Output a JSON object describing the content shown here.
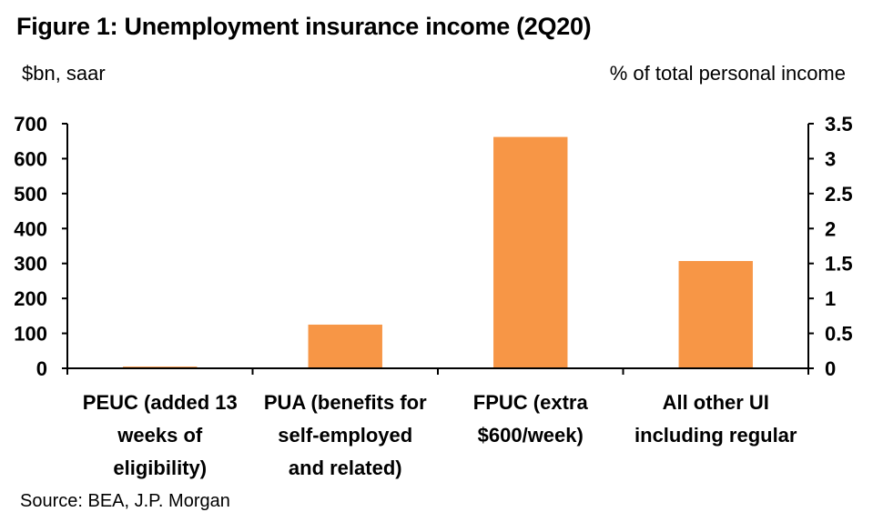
{
  "chart_data": {
    "type": "bar",
    "title": "Figure 1: Unemployment insurance income (2Q20)",
    "ylabel": "$bn, saar",
    "y2label": "% of total personal income",
    "ylim": [
      0,
      700
    ],
    "y2lim": [
      0,
      3.5
    ],
    "yticks": [
      "0",
      "100",
      "200",
      "300",
      "400",
      "500",
      "600",
      "700"
    ],
    "y2ticks": [
      "0",
      "0.5",
      "1",
      "1.5",
      "2",
      "2.5",
      "3",
      "3.5"
    ],
    "categories": [
      [
        "PEUC (added 13",
        "weeks of",
        "eligibility)"
      ],
      [
        "PUA (benefits for",
        "self-employed",
        "and related)"
      ],
      [
        "FPUC (extra",
        "$600/week)"
      ],
      [
        "All other UI",
        "including regular"
      ]
    ],
    "values": [
      5,
      125,
      662,
      307
    ],
    "bar_color": "#F79646",
    "grid": false,
    "legend": "none"
  },
  "source": "Source: BEA, J.P. Morgan"
}
